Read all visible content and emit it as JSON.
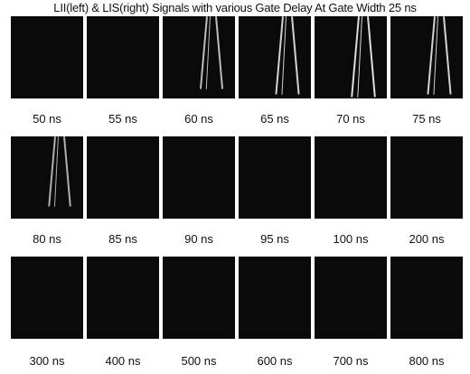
{
  "title": "LII(left) & LIS(right) Signals with various Gate Delay At Gate Width 25 ns",
  "rows": [
    {
      "frames": [
        {
          "label": "50 ns",
          "signal": 0
        },
        {
          "label": "55 ns",
          "signal": 0
        },
        {
          "label": "60 ns",
          "signal": 0.7
        },
        {
          "label": "65 ns",
          "signal": 0.9
        },
        {
          "label": "70 ns",
          "signal": 1.0
        },
        {
          "label": "75 ns",
          "signal": 0.9
        }
      ]
    },
    {
      "frames": [
        {
          "label": "80 ns",
          "signal": 0.6
        },
        {
          "label": "85 ns",
          "signal": 0
        },
        {
          "label": "90 ns",
          "signal": 0
        },
        {
          "label": "95 ns",
          "signal": 0
        },
        {
          "label": "100 ns",
          "signal": 0
        },
        {
          "label": "200 ns",
          "signal": 0
        }
      ]
    },
    {
      "frames": [
        {
          "label": "300 ns",
          "signal": 0
        },
        {
          "label": "400 ns",
          "signal": 0
        },
        {
          "label": "500 ns",
          "signal": 0
        },
        {
          "label": "600 ns",
          "signal": 0
        },
        {
          "label": "700 ns",
          "signal": 0
        },
        {
          "label": "800 ns",
          "signal": 0
        }
      ]
    }
  ]
}
